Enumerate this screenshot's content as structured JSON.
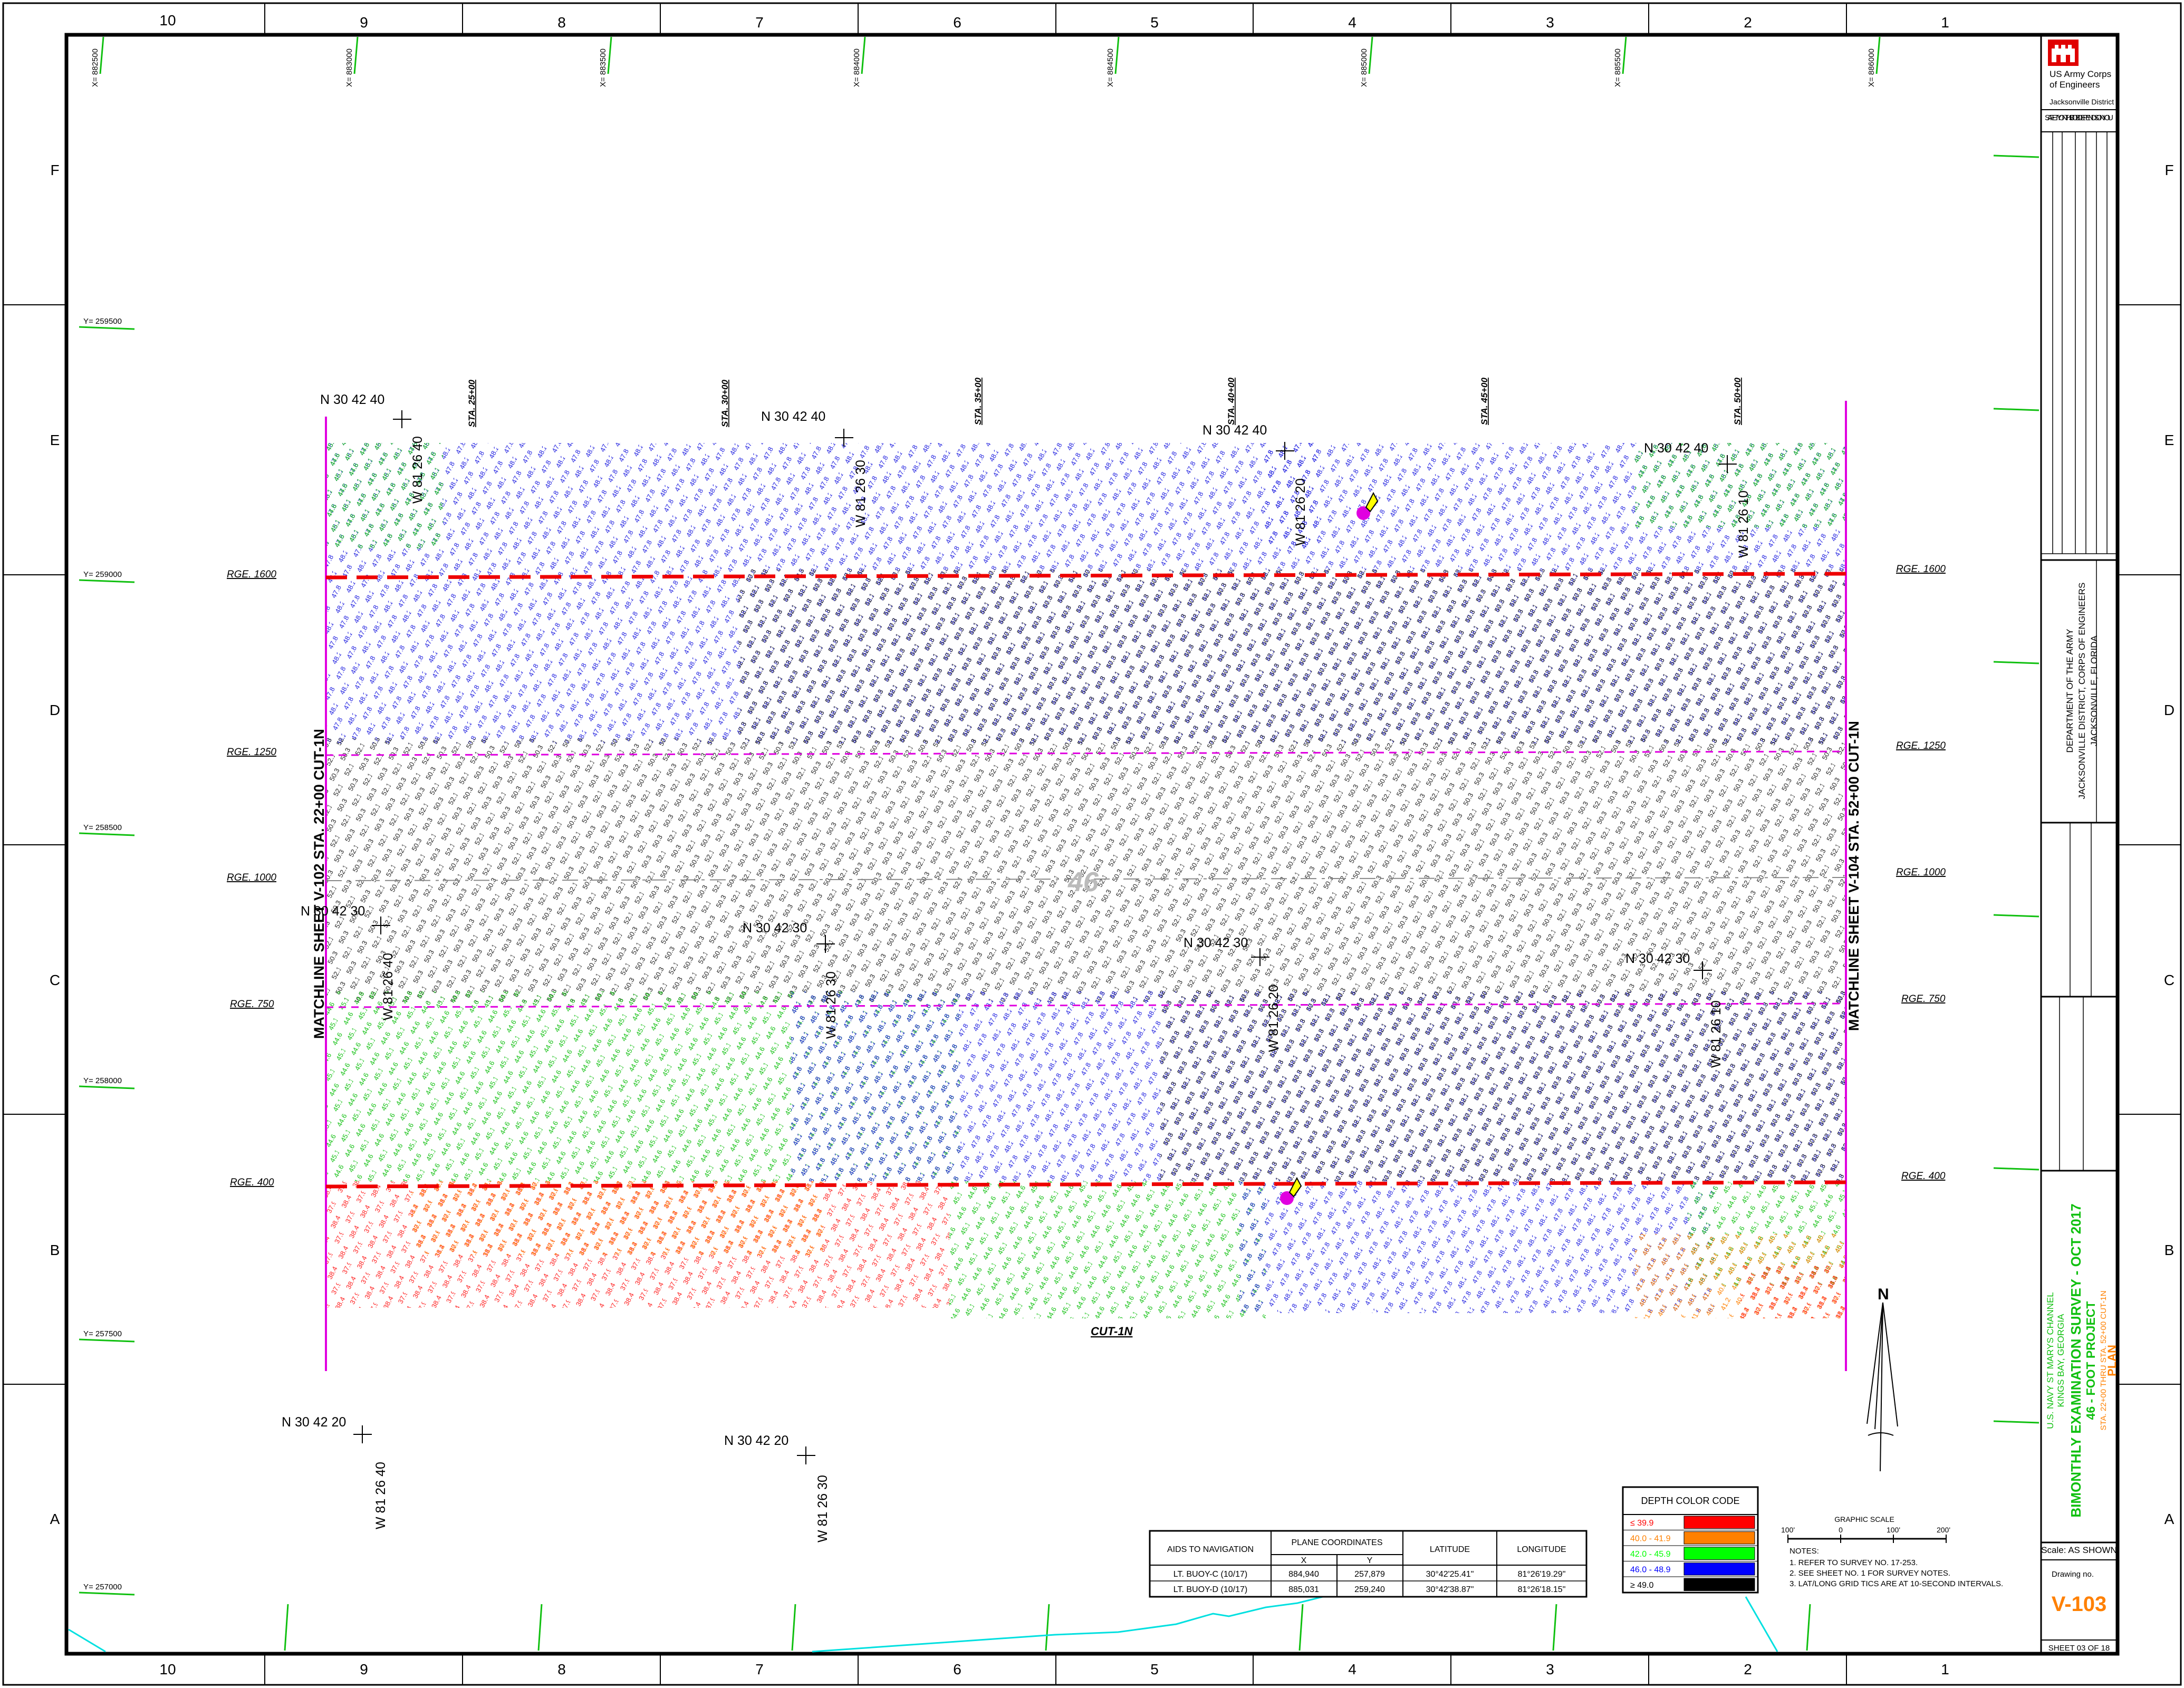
{
  "border": {
    "columns": [
      "10",
      "9",
      "8",
      "7",
      "6",
      "5",
      "4",
      "3",
      "2",
      "1"
    ],
    "rows": [
      "F",
      "E",
      "D",
      "C",
      "B",
      "A"
    ]
  },
  "grid": {
    "x_ticks": [
      "X= 882500",
      "X= 883000",
      "X= 883500",
      "X= 884000",
      "X= 884500",
      "X= 885000",
      "X= 885500",
      "X= 886000"
    ],
    "y_ticks": [
      "Y= 259500",
      "Y= 259000",
      "Y= 258500",
      "Y= 258000",
      "Y= 257500",
      "Y= 257000"
    ]
  },
  "stations": [
    "STA. 25+00",
    "STA. 30+00",
    "STA. 35+00",
    "STA. 40+00",
    "STA. 45+00",
    "STA. 50+00"
  ],
  "ranges": {
    "rge_1600": "RGE. 1600",
    "rge_1250": "RGE. 1250",
    "rge_1000": "RGE. 1000",
    "rge_750": "RGE. 750",
    "rge_400": "RGE. 400"
  },
  "matchline_left": "MATCHLINE SHEET V-102 STA. 22+00 CUT-1N",
  "matchline_right": "MATCHLINE SHEET V-104 STA. 52+00 CUT-1N",
  "channel_label": "CUT-1N",
  "channel_depth_label": "46",
  "coord_marks": {
    "lat_40": "N 30 42 40",
    "lat_30": "N 30 42 30",
    "lat_20": "N 30 42 20",
    "lon_40": "W 81 26 40",
    "lon_30": "W 81 26 30",
    "lon_20": "W 81 26 20",
    "lon_10": "W 81 26 10"
  },
  "aids_table": {
    "headers": {
      "aids": "AIDS TO NAVIGATION",
      "plane": "PLANE COORDINATES",
      "x": "X",
      "y": "Y",
      "lat": "LATITUDE",
      "lon": "LONGITUDE"
    },
    "rows": [
      {
        "name": "LT. BUOY-C (10/17)",
        "x": "884,940",
        "y": "257,879",
        "lat": "30°42'25.41\"",
        "lon": "81°26'19.29\""
      },
      {
        "name": "LT. BUOY-D (10/17)",
        "x": "885,031",
        "y": "259,240",
        "lat": "30°42'38.87\"",
        "lon": "81°26'18.15\""
      }
    ]
  },
  "depth_legend": {
    "title": "DEPTH COLOR CODE",
    "items": [
      {
        "label": "≤ 39.9",
        "color": "#ff0000"
      },
      {
        "label": "40.0 - 41.9",
        "color": "#ff8000"
      },
      {
        "label": "42.0 - 45.9",
        "color": "#00ff00"
      },
      {
        "label": "46.0 - 48.9",
        "color": "#0000ff"
      },
      {
        "label": "≥ 49.0",
        "color": "#000000"
      }
    ]
  },
  "graphic_scale": {
    "title": "GRAPHIC SCALE",
    "ticks": [
      "100'",
      "0",
      "100'",
      "200'"
    ]
  },
  "notes": {
    "title": "NOTES:",
    "items": [
      "1. REFER TO SURVEY NO. 17-253.",
      "2. SEE SHEET NO. 1 FOR SURVEY NOTES.",
      "3. LAT/LONG GRID TICS ARE AT 10-SECOND INTERVALS."
    ]
  },
  "north": "N",
  "title_block": {
    "org_line1": "US Army Corps",
    "org_line2": "of Engineers",
    "org_line3": "Jacksonville District",
    "safety": "SAFETY ON THIS JOB DEPENDS ON YOU",
    "dept1": "DEPARTMENT OF THE ARMY",
    "dept2": "JACKSONVILLE DISTRICT, CORPS OF ENGINEERS",
    "dept3": "JACKSONVILLE, FLORIDA",
    "project1": "U.S. NAVY ST MARYS CHANNEL",
    "project2": "KINGS BAY, GEORGIA",
    "survey_title": "BIMONTHLY EXAMINATION SURVEY - OCT 2017",
    "depth_project": "46 - FOOT PROJECT",
    "sta_range": "STA. 22+00 THRU STA. 52+00 CUT-1N",
    "plan": "PLAN",
    "scale": "Scale:  AS SHOWN",
    "drawing_no_label": "Drawing no.",
    "drawing_no": "V-103",
    "sheet": "SHEET  03  OF  18"
  }
}
